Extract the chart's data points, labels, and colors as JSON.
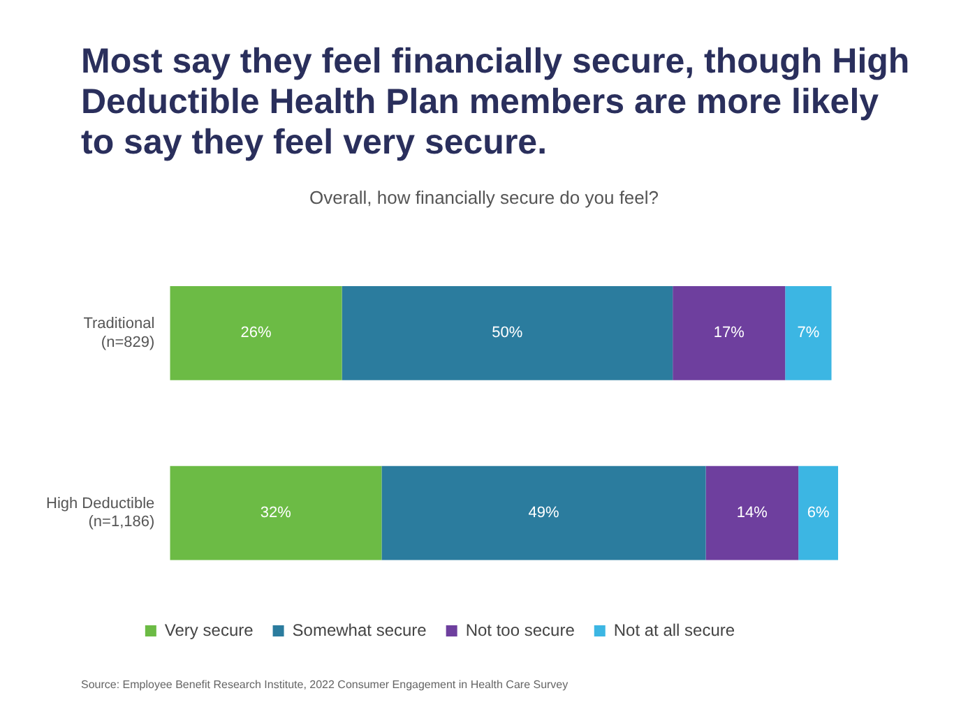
{
  "chart_data": {
    "type": "bar",
    "orientation": "horizontal",
    "stacked": true,
    "title": "Most say they feel financially secure, though High Deductible Health Plan members are more likely to say they feel very secure.",
    "subtitle": "Overall, how financially secure do you feel?",
    "categories": [
      "Traditional\n(n=829)",
      "High Deductible\n(n=1,186)"
    ],
    "series": [
      {
        "name": "Very secure",
        "color": "#6cbb45",
        "values": [
          26,
          32
        ],
        "value_labels": [
          "26%",
          "32%"
        ]
      },
      {
        "name": "Somewhat secure",
        "color": "#2b7c9e",
        "values": [
          50,
          49
        ],
        "value_labels": [
          "50%",
          "49%"
        ]
      },
      {
        "name": "Not too secure",
        "color": "#6e3f9e",
        "values": [
          17,
          14
        ],
        "value_labels": [
          "17%",
          "14%"
        ]
      },
      {
        "name": "Not at all secure",
        "color": "#3cb6e3",
        "values": [
          7,
          6
        ],
        "value_labels": [
          "7%",
          "6%"
        ]
      }
    ],
    "legend": "bottom",
    "annotations": [
      "Source: Employee Benefit Research Institute, 2022 Consumer Engagement in Health Care Survey"
    ]
  }
}
